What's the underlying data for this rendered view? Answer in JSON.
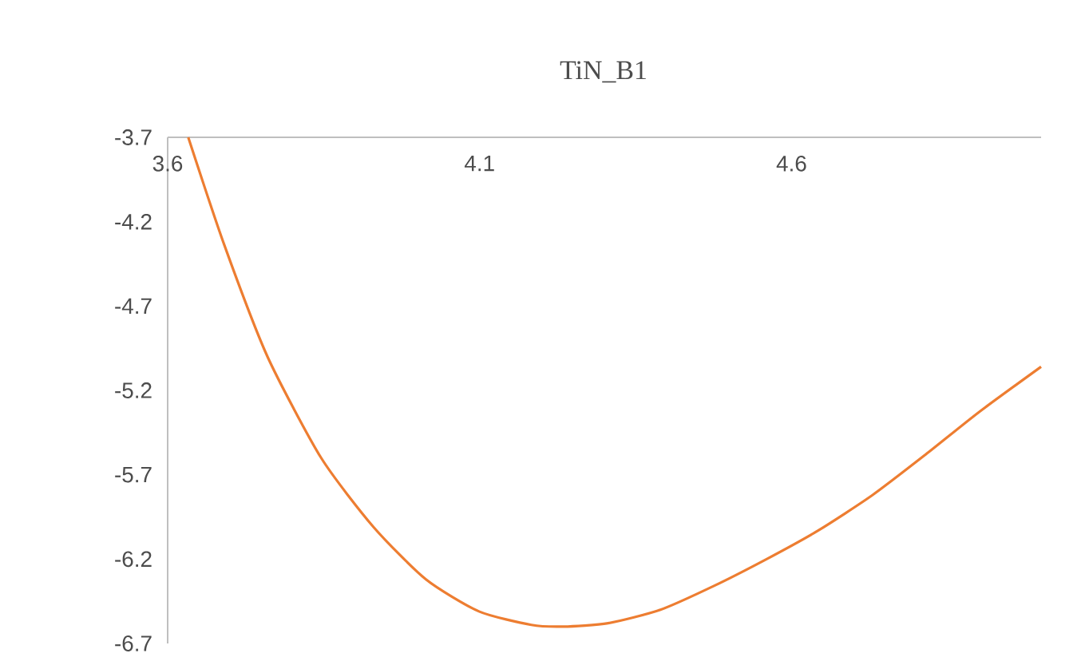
{
  "chart_data": {
    "type": "line",
    "title": "TiN_B1",
    "x": [
      3.633,
      3.69,
      3.76,
      3.846,
      3.93,
      4.014,
      4.099,
      4.183,
      4.234,
      4.306,
      4.39,
      4.475,
      4.56,
      4.643,
      4.73,
      4.815,
      4.9,
      5.0
    ],
    "series": [
      {
        "color": "#ed7d31",
        "values": [
          -3.7,
          -4.33,
          -5.0,
          -5.6,
          -6.01,
          -6.32,
          -6.51,
          -6.59,
          -6.6,
          -6.58,
          -6.5,
          -6.36,
          -6.2,
          -6.03,
          -5.82,
          -5.58,
          -5.33,
          -5.06
        ]
      }
    ],
    "xlim": [
      3.6,
      5.0
    ],
    "ylim": [
      -6.7,
      -3.7
    ],
    "xticks": [
      3.6,
      4.1,
      4.6
    ],
    "yticks": [
      -6.7,
      -6.2,
      -5.7,
      -5.2,
      -4.7,
      -4.2,
      -3.7
    ],
    "grid": false,
    "marker": "none",
    "line_style": "solid"
  }
}
